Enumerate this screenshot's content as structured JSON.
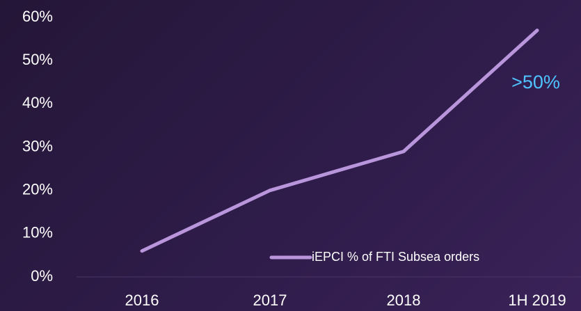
{
  "chart_data": {
    "type": "line",
    "categories": [
      "2016",
      "2017",
      "2018",
      "1H 2019"
    ],
    "series": [
      {
        "name": "iEPCI % of FTI Subsea orders",
        "color": "#b995dc",
        "values": [
          6,
          20,
          29,
          57
        ]
      }
    ],
    "ylim": [
      0,
      60
    ],
    "yticks": [
      {
        "value": 0,
        "label": "0%"
      },
      {
        "value": 10,
        "label": "10%"
      },
      {
        "value": 20,
        "label": "20%"
      },
      {
        "value": 30,
        "label": "30%"
      },
      {
        "value": 40,
        "label": "40%"
      },
      {
        "value": 50,
        "label": "50%"
      },
      {
        "value": 60,
        "label": "60%"
      }
    ],
    "annotation": ">50%",
    "annotation_color": "#4fc3ff",
    "legend": "bottom-right",
    "grid": false
  }
}
